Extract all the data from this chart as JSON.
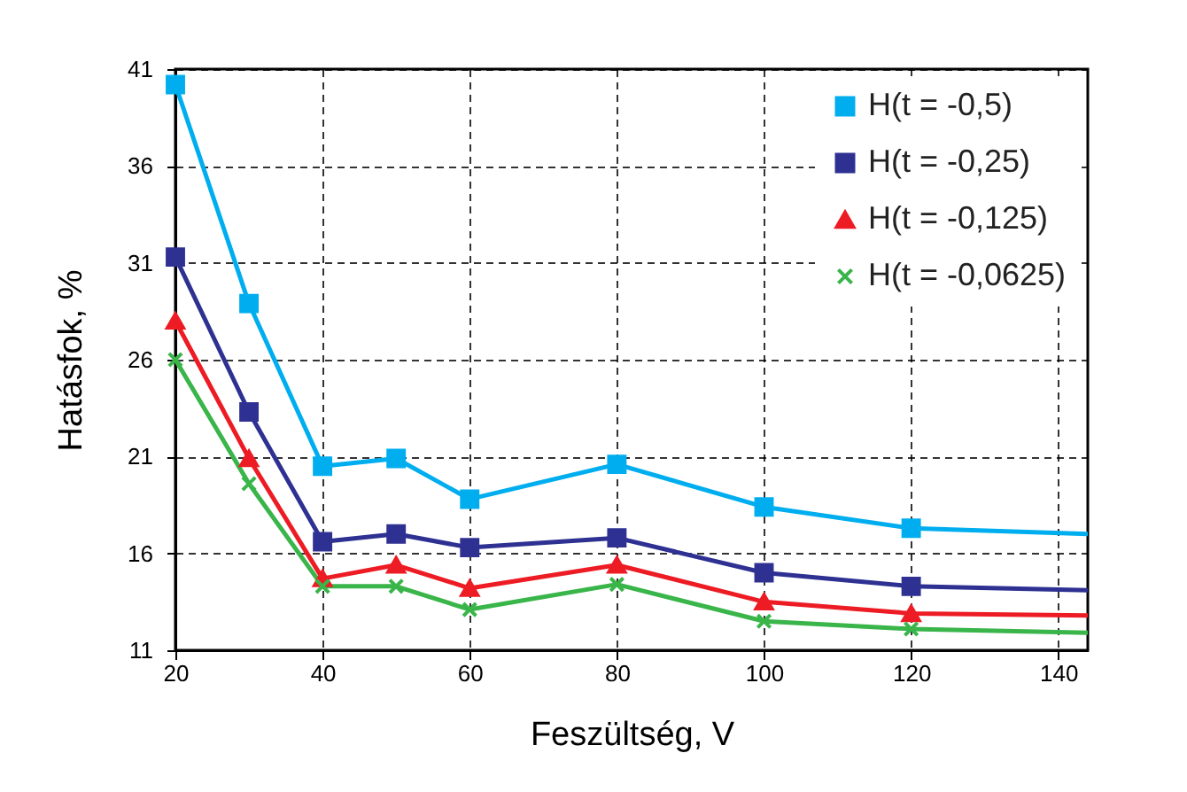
{
  "chart_data": {
    "type": "line",
    "xlabel": "Feszültség, V",
    "ylabel": "Hatásfok, %",
    "x": [
      20,
      30,
      40,
      50,
      60,
      80,
      100,
      120,
      144
    ],
    "xlim": [
      20,
      144
    ],
    "xticks": [
      20,
      40,
      60,
      80,
      100,
      120,
      140
    ],
    "ylim": [
      11,
      41
    ],
    "yticks": [
      11,
      16,
      21,
      26,
      31,
      36,
      41
    ],
    "grid": true,
    "legend": "top right",
    "line_style": "solid",
    "series": [
      {
        "name": "H(t = -0,5)",
        "color": "#00aeef",
        "marker": "square",
        "values": [
          40.2,
          28.9,
          20.5,
          20.9,
          18.8,
          20.6,
          18.4,
          17.3,
          17.0
        ]
      },
      {
        "name": "H(t = -0,25)",
        "color": "#2e3192",
        "marker": "square",
        "values": [
          31.3,
          23.3,
          16.6,
          17.0,
          16.3,
          16.8,
          15.0,
          14.3,
          14.1
        ]
      },
      {
        "name": "H(t = -0,125)",
        "color": "#ed1c24",
        "marker": "triangle",
        "values": [
          28.0,
          20.9,
          14.7,
          15.4,
          14.2,
          15.4,
          13.5,
          12.9,
          12.8
        ]
      },
      {
        "name": "H(t = -0,0625)",
        "color": "#39b54a",
        "marker": "cross",
        "values": [
          26.0,
          19.6,
          14.3,
          14.3,
          13.1,
          14.4,
          12.5,
          12.1,
          11.9
        ]
      }
    ]
  }
}
